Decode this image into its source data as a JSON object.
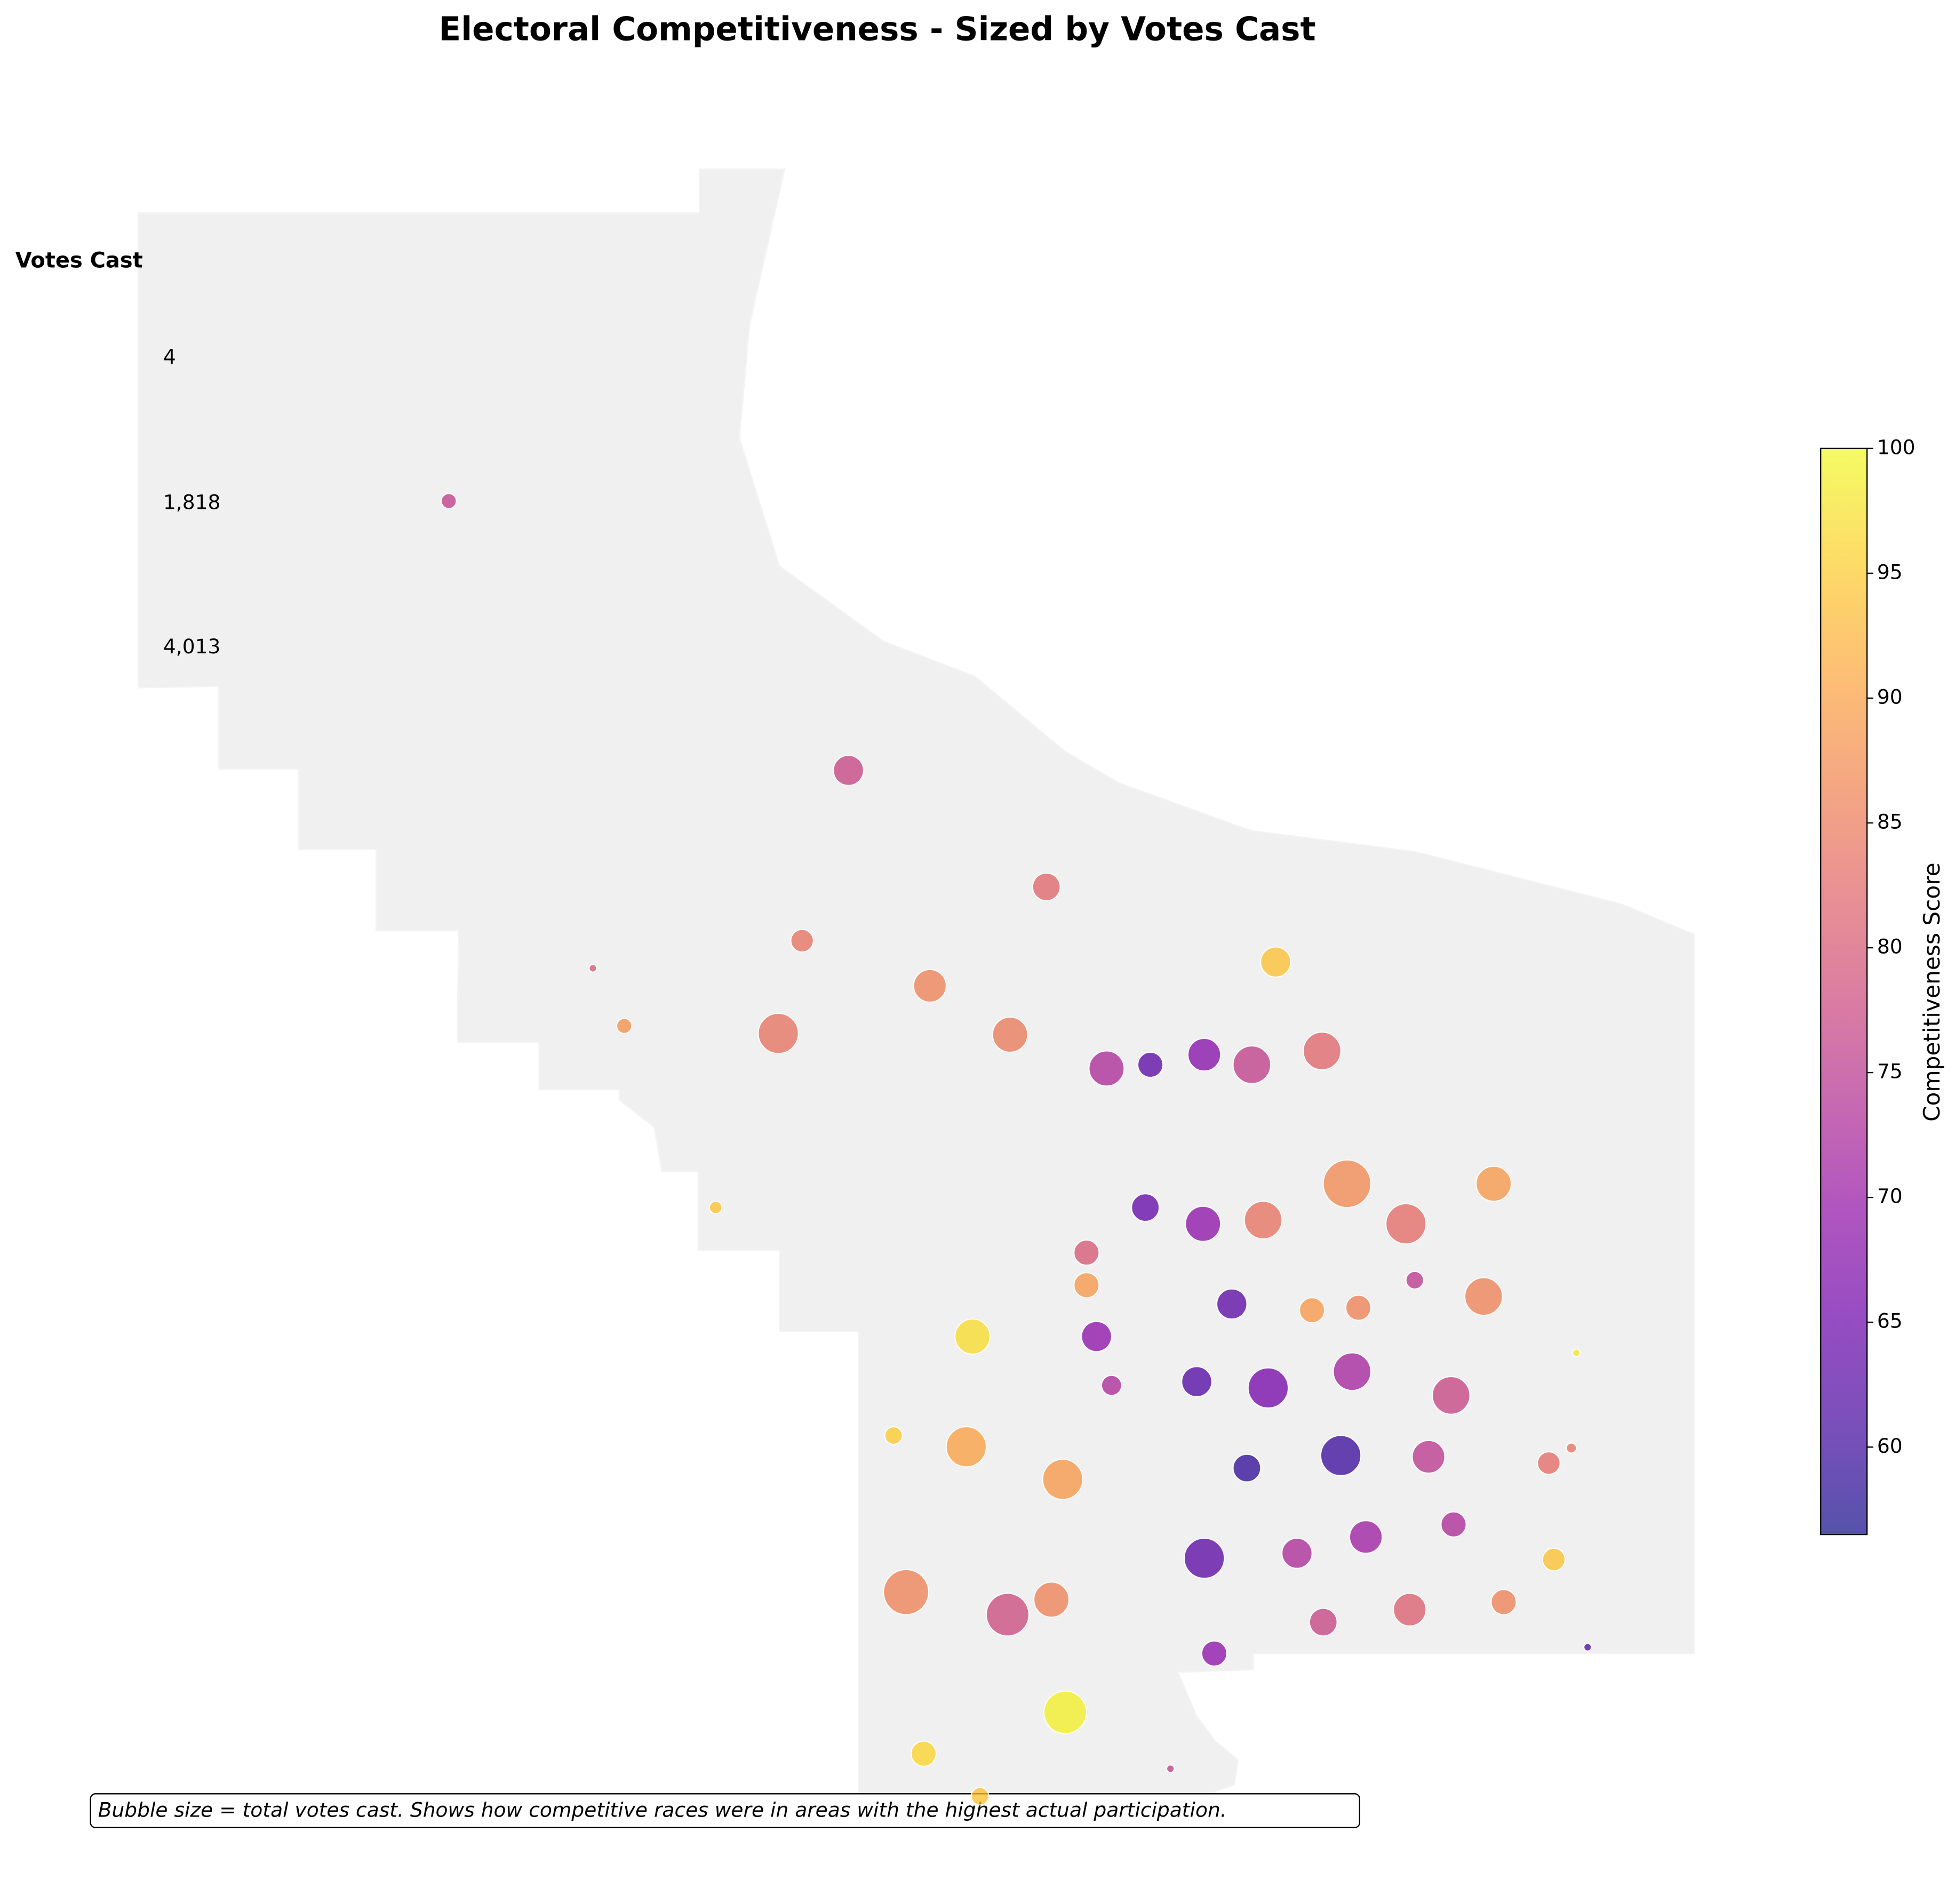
{
  "chart_data": {
    "type": "bubble",
    "title": "Electoral Competitiveness - Sized by Votes Cast",
    "xlim": [
      0,
      1560
    ],
    "ylim": [
      1520,
      0
    ],
    "x": [
      358,
      677,
      835,
      640,
      473,
      742,
      1018,
      498,
      621,
      806,
      883,
      918,
      961,
      999,
      1055,
      1075,
      1192,
      571,
      914,
      960,
      1008,
      1122,
      867,
      1129,
      867,
      983,
      1047,
      1084,
      1184,
      776,
      875,
      1258,
      887,
      955,
      1012,
      1079,
      1158,
      713,
      771,
      848,
      995,
      1070,
      1140,
      1236,
      1254,
      1035,
      1090,
      1160,
      1240,
      961,
      723,
      804,
      839,
      1056,
      1125,
      1200,
      1267,
      969,
      850,
      737,
      934,
      782
    ],
    "y": [
      400,
      615,
      708,
      751,
      773,
      787,
      768,
      819,
      825,
      826,
      853,
      850,
      842,
      850,
      839,
      945,
      945,
      964,
      964,
      977,
      974,
      977,
      1000,
      1022,
      1026,
      1041,
      1046,
      1044,
      1035,
      1067,
      1067,
      1080,
      1106,
      1103,
      1108,
      1095,
      1114,
      1146,
      1155,
      1181,
      1172,
      1162,
      1163,
      1168,
      1156,
      1240,
      1227,
      1217,
      1245,
      1244,
      1271,
      1289,
      1277,
      1295,
      1285,
      1279,
      1315,
      1320,
      1367,
      1400,
      1412,
      1434
    ],
    "sizes": [
      400,
      1600,
      1344,
      900,
      100,
      1878,
      1600,
      400,
      2844,
      2178,
      2178,
      1111,
      1878,
      2500,
      2500,
      4011,
      2178,
      278,
      1344,
      2178,
      2500,
      2844,
      1111,
      544,
      1111,
      1600,
      1111,
      1111,
      2500,
      2178,
      1600,
      100,
      711,
      1600,
      2844,
      2500,
      2500,
      544,
      2844,
      2844,
      1344,
      2844,
      1878,
      900,
      178,
      1600,
      1878,
      1111,
      900,
      2844,
      3600,
      3211,
      2178,
      1344,
      1878,
      1111,
      100,
      1111,
      3211,
      1111,
      100,
      544
    ],
    "scores": [
      76,
      77,
      82,
      84,
      80,
      86,
      94,
      88,
      84,
      85,
      73,
      63,
      68,
      76,
      82,
      87,
      89,
      94,
      64,
      69,
      84,
      83,
      80,
      75,
      89,
      63,
      89,
      86,
      86,
      97,
      69,
      98,
      73,
      62,
      66,
      72,
      77,
      95,
      90,
      89,
      59,
      60,
      75,
      83,
      84,
      73,
      71,
      73,
      94,
      63,
      86,
      78,
      86,
      77,
      81,
      86,
      62,
      69,
      99,
      96,
      76,
      94
    ],
    "colormap": "plasma",
    "colorbar_label": "Competitiveness Score",
    "clim": [
      56.5,
      100
    ],
    "cticks": [
      60,
      65,
      70,
      75,
      80,
      85,
      90,
      95,
      100
    ],
    "size_legend_title": "Votes Cast",
    "size_legend": [
      {
        "value": 4,
        "label": "4"
      },
      {
        "value": 1818,
        "label": "1,818"
      },
      {
        "value": 4013,
        "label": "4,013"
      }
    ],
    "note": "Bubble size = total votes cast. Shows how competitive races were in areas with the highest actual participation."
  }
}
